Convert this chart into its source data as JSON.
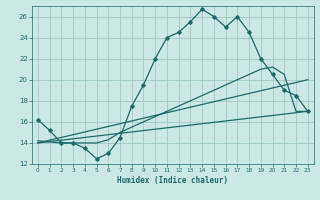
{
  "xlabel": "Humidex (Indice chaleur)",
  "bg_color": "#cce8e4",
  "grid_color": "#a0c8c4",
  "line_color": "#1a6b6b",
  "xlim": [
    -0.5,
    23.5
  ],
  "ylim": [
    12,
    27
  ],
  "xticks": [
    0,
    1,
    2,
    3,
    4,
    5,
    6,
    7,
    8,
    9,
    10,
    11,
    12,
    13,
    14,
    15,
    16,
    17,
    18,
    19,
    20,
    21,
    22,
    23
  ],
  "yticks": [
    12,
    14,
    16,
    18,
    20,
    22,
    24,
    26
  ],
  "main_x": [
    0,
    1,
    2,
    3,
    4,
    5,
    6,
    7,
    8,
    9,
    10,
    11,
    12,
    13,
    14,
    15,
    16,
    17,
    18,
    19,
    20,
    21,
    22,
    23
  ],
  "main_y": [
    16.2,
    15.2,
    14.0,
    14.0,
    13.5,
    12.5,
    13.0,
    14.5,
    17.5,
    19.5,
    22.0,
    24.0,
    24.5,
    25.5,
    26.7,
    26.0,
    25.0,
    26.0,
    24.5,
    22.0,
    20.5,
    19.0,
    18.5,
    17.0
  ],
  "line2_x": [
    0,
    1,
    2,
    3,
    4,
    5,
    6,
    7,
    8,
    9,
    10,
    11,
    12,
    13,
    14,
    15,
    16,
    17,
    18,
    19,
    20,
    21,
    22,
    23
  ],
  "line2_y": [
    14.2,
    14.1,
    14.0,
    14.0,
    14.0,
    14.0,
    14.3,
    15.0,
    15.5,
    16.0,
    16.5,
    17.0,
    17.5,
    18.0,
    18.5,
    19.0,
    19.5,
    20.0,
    20.5,
    21.0,
    21.2,
    20.5,
    17.0,
    17.0
  ],
  "line3_x": [
    0,
    23
  ],
  "line3_y": [
    14.0,
    20.0
  ],
  "line4_x": [
    0,
    23
  ],
  "line4_y": [
    14.0,
    17.0
  ]
}
